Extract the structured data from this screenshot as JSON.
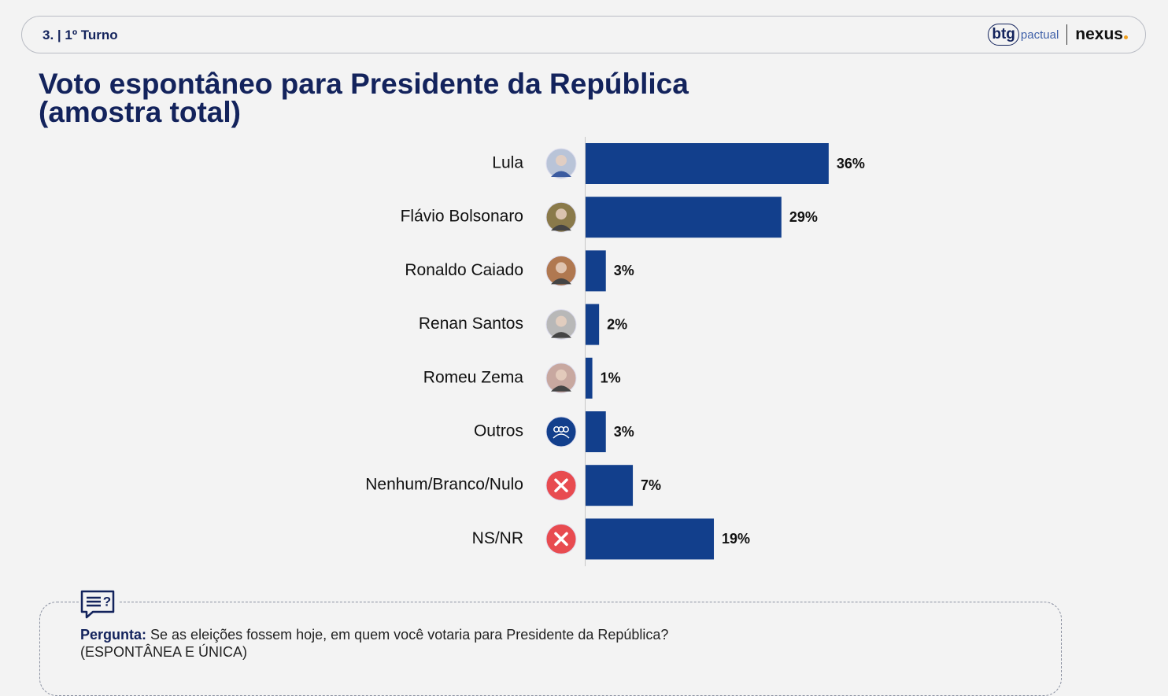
{
  "header": {
    "section": "3. | 1º Turno",
    "logo_btg": "btg",
    "logo_pactual": "pactual",
    "logo_nexus": "nexus"
  },
  "chart_data": {
    "type": "bar",
    "orientation": "horizontal",
    "title": "Voto espontâneo para Presidente da República",
    "subtitle": "(amostra total)",
    "categories": [
      "Lula",
      "Flávio Bolsonaro",
      "Ronaldo Caiado",
      "Renan Santos",
      "Romeu Zema",
      "Outros",
      "Nenhum/Branco/Nulo",
      "NS/NR"
    ],
    "values": [
      36,
      29,
      3,
      2,
      1,
      3,
      7,
      19
    ],
    "value_labels": [
      "36%",
      "29%",
      "3%",
      "2%",
      "1%",
      "3%",
      "7%",
      "19%"
    ],
    "color": "#123f8c"
  },
  "question": {
    "label": "Pergunta:",
    "text": "Se as eleições fossem hoje, em quem você votaria para Presidente da República?",
    "note": "(ESPONTÂNEA E ÚNICA)"
  }
}
